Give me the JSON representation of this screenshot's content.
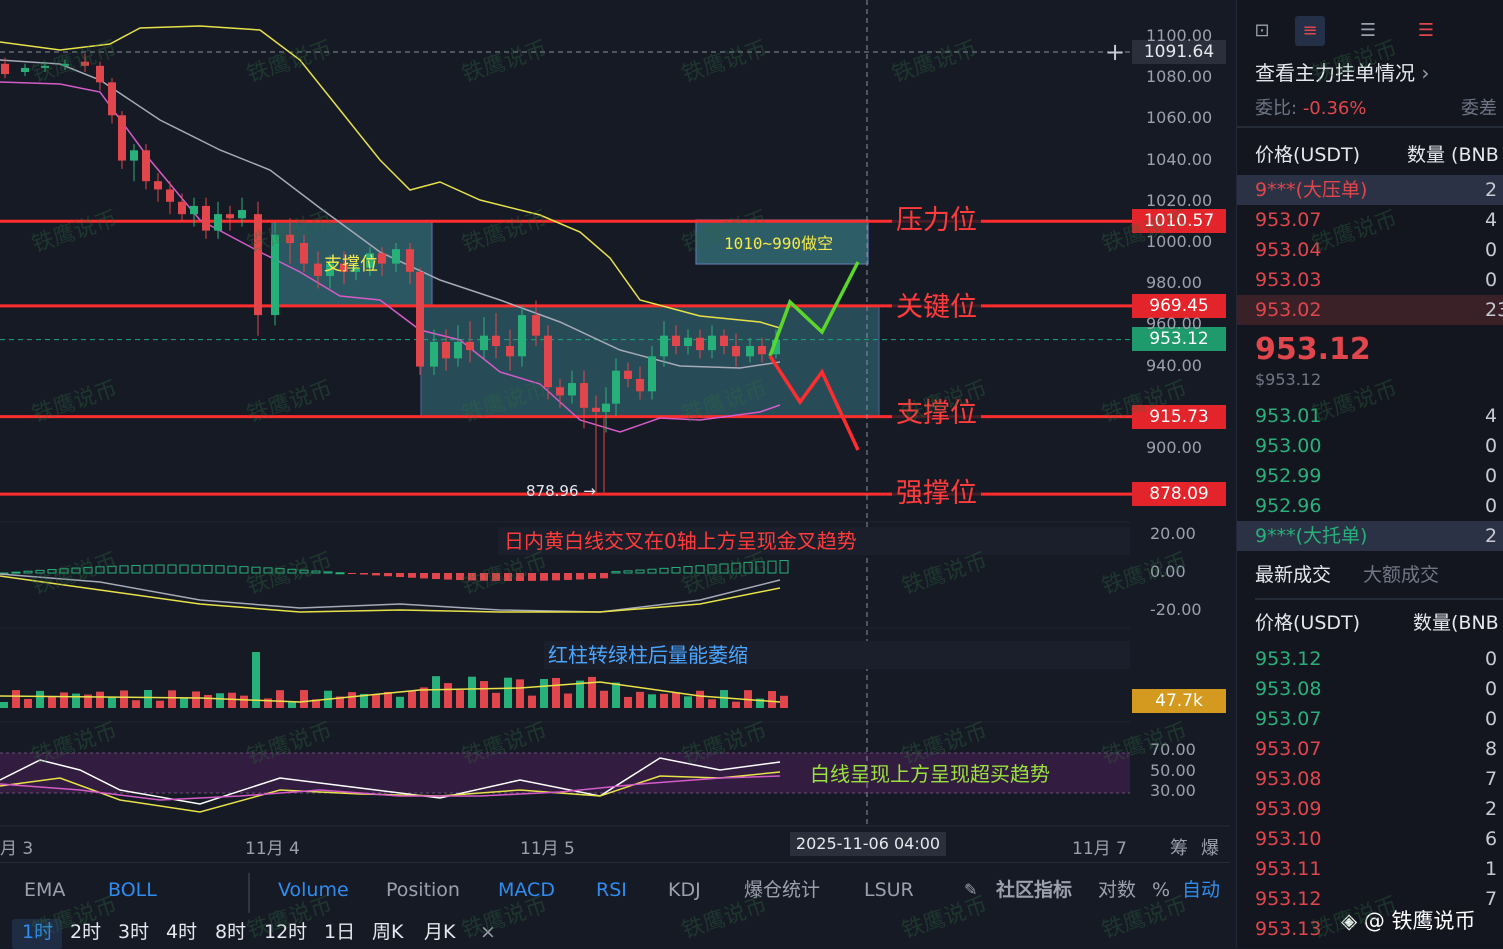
{
  "chart_data": {
    "type": "candlestick",
    "symbol_price_levels": {
      "crosshair_price": "1091.64",
      "pressure": "1010.57",
      "key": "969.45",
      "current": "953.12",
      "support": "915.73",
      "strong_support": "878.09"
    },
    "price_ticks": [
      "1100.00",
      "1080.00",
      "1060.00",
      "1040.00",
      "1020.00",
      "1000.00",
      "980.00",
      "960.00",
      "940.00",
      "900.00"
    ],
    "macd_ticks": [
      "20.00",
      "0.00",
      "-20.00"
    ],
    "volume_tag": "47.7k",
    "rsi_ticks": [
      "70.00",
      "50.00",
      "30.00"
    ],
    "x_ticks": [
      "月 3",
      "11月 4",
      "11月 5",
      "11月 7"
    ],
    "crosshair_time": "2025-11-06 04:00",
    "low_marker": "878.96 →",
    "annotations": {
      "support_box": "支撑位",
      "short_box": "1010~990做空",
      "pressure": "压力位",
      "key": "关键位",
      "support": "支撑位",
      "strong_support": "强撑位",
      "macd_note": "日内黄白线交叉在0轴上方呈现金叉趋势",
      "volume_note": "红柱转绿柱后量能萎缩",
      "rsi_note": "白线呈现上方呈现超买趋势"
    },
    "corner_icons": [
      "筹",
      "爆"
    ]
  },
  "bottom": {
    "indicators": [
      "EMA",
      "BOLL",
      "Volume",
      "Position",
      "MACD",
      "RSI",
      "KDJ",
      "爆仓统计",
      "LSUR"
    ],
    "community": "社区指标",
    "log": "对数",
    "pct": "%",
    "auto": "自动",
    "timeframes": [
      "1时",
      "2时",
      "3时",
      "4时",
      "8时",
      "12时",
      "1日",
      "周K",
      "月K"
    ],
    "close": "×"
  },
  "side": {
    "view_main_orders": "查看主力挂单情况",
    "ratio_label": "委比:",
    "ratio_value": "-0.36%",
    "diff_label": "委差",
    "price_header": "价格(USDT)",
    "qty_header": "数量 (BNB",
    "asks": [
      {
        "p": "9***(大压单)",
        "q": "2"
      },
      {
        "p": "953.07",
        "q": "4"
      },
      {
        "p": "953.04",
        "q": "0"
      },
      {
        "p": "953.03",
        "q": "0"
      },
      {
        "p": "953.02",
        "q": "23"
      }
    ],
    "last_price": "953.12",
    "last_price_usd": "$953.12",
    "bids": [
      {
        "p": "953.01",
        "q": "4"
      },
      {
        "p": "953.00",
        "q": "0"
      },
      {
        "p": "952.99",
        "q": "0"
      },
      {
        "p": "952.96",
        "q": "0"
      },
      {
        "p": "9***(大托单)",
        "q": "2"
      }
    ],
    "tab_latest": "最新成交",
    "tab_large": "大额成交",
    "trade_price_header": "价格(USDT)",
    "trade_qty_header": "数量(BNB",
    "trades": [
      {
        "p": "953.12",
        "q": "0",
        "c": "green"
      },
      {
        "p": "953.08",
        "q": "0",
        "c": "green"
      },
      {
        "p": "953.07",
        "q": "0",
        "c": "green"
      },
      {
        "p": "953.07",
        "q": "8",
        "c": "red"
      },
      {
        "p": "953.08",
        "q": "7",
        "c": "red"
      },
      {
        "p": "953.09",
        "q": "2",
        "c": "red"
      },
      {
        "p": "953.10",
        "q": "6",
        "c": "red"
      },
      {
        "p": "953.11",
        "q": "1",
        "c": "red"
      },
      {
        "p": "953.12",
        "q": "7",
        "c": "red"
      },
      {
        "p": "953.13",
        "q": "",
        "c": "red"
      }
    ],
    "footer_brand": "@ 铁鹰说币"
  },
  "watermark": "铁鹰说币",
  "colors": {
    "up": "#28b07a",
    "down": "#e0464b",
    "level": "#ff3b3b",
    "accent": "#2f8cf0",
    "bg": "#161a25"
  }
}
